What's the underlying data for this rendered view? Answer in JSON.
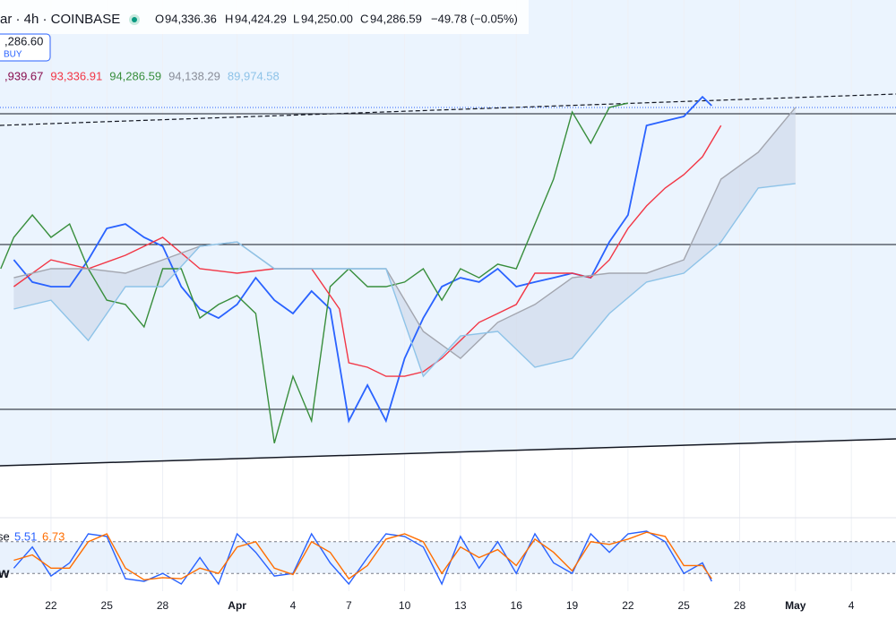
{
  "header": {
    "symbol": "ar · 4h · COINBASE",
    "open_label": "O",
    "open": "94,336.36",
    "high_label": "H",
    "high": "94,424.29",
    "low_label": "L",
    "low": "94,250.00",
    "close_label": "C",
    "close": "94,286.59",
    "change": "−49.78 (−0.05%)",
    "buy_price": ",286.60",
    "buy_label": "BUY",
    "indicator_values": [
      {
        "text": ",939.67",
        "color": "#880e4f"
      },
      {
        "text": "93,336.91",
        "color": "#f23645"
      },
      {
        "text": "94,286.59",
        "color": "#388e3c"
      },
      {
        "text": "94,138.29",
        "color": "#8a8e99"
      },
      {
        "text": "89,974.58",
        "color": "#8ec3e8"
      }
    ]
  },
  "chart_data": [
    {
      "type": "line",
      "xlim": [
        -2.74,
        45.4
      ],
      "ylim": [
        73700,
        100500
      ],
      "series": [
        {
          "color": "#2962ff",
          "x": [
            -2,
            -1,
            0,
            1,
            2,
            3,
            4,
            5,
            6,
            7,
            8,
            9,
            10,
            11,
            12,
            13,
            14,
            15,
            16,
            17,
            18,
            19,
            20,
            21,
            22,
            23,
            24,
            25,
            26,
            27,
            28,
            29,
            30,
            31,
            32,
            33,
            34,
            35,
            35.5
          ],
          "values": [
            85550,
            84270,
            84010,
            84010,
            85550,
            87360,
            87610,
            86840,
            86330,
            84010,
            82720,
            82200,
            82980,
            84520,
            83230,
            82460,
            83750,
            82720,
            76280,
            78340,
            76280,
            79880,
            82200,
            84010,
            84520,
            84270,
            85040,
            84010,
            84270,
            84520,
            84780,
            84520,
            86580,
            88130,
            93280,
            93540,
            93800,
            94930,
            94420
          ]
        },
        {
          "color": "#388e3c",
          "x": [
            -2.7,
            -2,
            -1,
            0,
            1,
            2,
            3,
            4,
            5,
            6,
            7,
            8,
            9,
            10,
            11,
            12,
            13,
            14,
            15,
            16,
            17,
            18,
            19,
            20,
            21,
            22,
            23,
            24,
            25,
            26,
            27,
            28,
            29,
            30,
            31
          ],
          "values": [
            85040,
            86840,
            88130,
            86840,
            87610,
            85040,
            83230,
            82980,
            81690,
            85040,
            85040,
            82200,
            82980,
            83490,
            82460,
            75000,
            78850,
            76280,
            84010,
            85040,
            84010,
            84010,
            84270,
            85040,
            83230,
            85040,
            84520,
            85300,
            85040,
            87610,
            90190,
            94060,
            92260,
            94320,
            94570
          ]
        },
        {
          "color": "#f23645",
          "x": [
            -2,
            0,
            2,
            4,
            6,
            8,
            10,
            12,
            14,
            15.5,
            16,
            17,
            18,
            19,
            20,
            21,
            22,
            23,
            24,
            25,
            26,
            27,
            28,
            29,
            30,
            31,
            32,
            33,
            34,
            35,
            36
          ],
          "values": [
            84010,
            85550,
            85040,
            85810,
            86840,
            85040,
            84780,
            85040,
            85040,
            82720,
            79620,
            79370,
            78850,
            78850,
            79110,
            79880,
            80910,
            81950,
            82460,
            82980,
            84780,
            84780,
            84780,
            84520,
            85550,
            87360,
            88650,
            89680,
            90450,
            91480,
            93280
          ]
        },
        {
          "color": "#a3a6af",
          "x": [
            -2,
            0,
            2,
            4,
            6,
            8,
            10,
            12,
            14,
            16,
            18,
            20,
            22,
            24,
            26,
            28,
            30,
            32,
            34,
            36,
            38,
            40
          ],
          "values": [
            84520,
            85040,
            85040,
            84780,
            85550,
            86330,
            86580,
            85040,
            85040,
            85040,
            85040,
            81430,
            79880,
            81950,
            82980,
            84520,
            84780,
            84780,
            85550,
            90190,
            91740,
            94320
          ]
        },
        {
          "color": "#8ec3e8",
          "x": [
            -2,
            0,
            2,
            4,
            6,
            8,
            10,
            12,
            14,
            16,
            18,
            20,
            22,
            24,
            26,
            28,
            30,
            32,
            34,
            36,
            38,
            40
          ],
          "values": [
            82720,
            83230,
            80910,
            84010,
            84010,
            86330,
            86580,
            85040,
            85040,
            85040,
            85040,
            78850,
            81170,
            81430,
            79370,
            79880,
            82460,
            84270,
            84780,
            86580,
            89680,
            89940
          ]
        }
      ],
      "fill_between": [
        3,
        4
      ],
      "fill_color": "#c9d3e6"
    },
    {
      "type": "line",
      "xlim": [
        -2.74,
        45.4
      ],
      "ylim": [
        0,
        100
      ],
      "bands": [
        20,
        80
      ],
      "label": "se",
      "marker": "w",
      "k_value": "5.51",
      "d_value": "6.73",
      "series": [
        {
          "color": "#2962ff",
          "x": [
            -2,
            -1,
            0,
            1,
            2,
            3,
            4,
            5,
            6,
            7,
            8,
            9,
            10,
            11,
            12,
            13,
            14,
            15,
            16,
            17,
            18,
            19,
            20,
            21,
            22,
            23,
            24,
            25,
            26,
            27,
            28,
            29,
            30,
            31,
            32,
            33,
            34,
            35,
            35.5
          ],
          "values": [
            30,
            70,
            15,
            40,
            95,
            90,
            10,
            5,
            20,
            0,
            50,
            0,
            95,
            60,
            15,
            20,
            95,
            40,
            0,
            50,
            95,
            90,
            70,
            0,
            90,
            30,
            80,
            20,
            95,
            40,
            20,
            95,
            60,
            95,
            100,
            80,
            20,
            40,
            5
          ]
        },
        {
          "color": "#ff6d00",
          "x": [
            -2,
            -1,
            0,
            1,
            2,
            3,
            4,
            5,
            6,
            7,
            8,
            9,
            10,
            11,
            12,
            13,
            14,
            15,
            16,
            17,
            18,
            19,
            20,
            21,
            22,
            23,
            24,
            25,
            26,
            27,
            28,
            29,
            30,
            31,
            32,
            33,
            34,
            35,
            35.5
          ],
          "values": [
            45,
            55,
            30,
            30,
            80,
            95,
            30,
            8,
            12,
            10,
            30,
            20,
            70,
            80,
            30,
            18,
            80,
            60,
            10,
            35,
            85,
            95,
            80,
            20,
            70,
            50,
            65,
            35,
            85,
            60,
            25,
            80,
            75,
            85,
            98,
            90,
            35,
            35,
            10
          ]
        }
      ],
      "xticks": [
        {
          "value": 0,
          "label": "22"
        },
        {
          "value": 3,
          "label": "25"
        },
        {
          "value": 6,
          "label": "28"
        },
        {
          "value": 10,
          "label": "Apr"
        },
        {
          "value": 13,
          "label": "4"
        },
        {
          "value": 16,
          "label": "7"
        },
        {
          "value": 19,
          "label": "10"
        },
        {
          "value": 22,
          "label": "13"
        },
        {
          "value": 25,
          "label": "16"
        },
        {
          "value": 28,
          "label": "19"
        },
        {
          "value": 31,
          "label": "22"
        },
        {
          "value": 34,
          "label": "25"
        },
        {
          "value": 37,
          "label": "28"
        },
        {
          "value": 40,
          "label": "May"
        },
        {
          "value": 43,
          "label": "4"
        }
      ]
    }
  ]
}
